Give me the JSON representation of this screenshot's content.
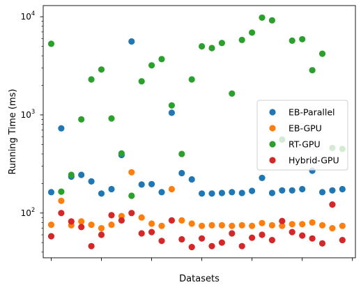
{
  "chart_data": {
    "type": "scatter",
    "xlabel": "Datasets",
    "ylabel": "Running Time (ms)",
    "yscale": "log",
    "ylim": [
      35,
      13000
    ],
    "xlim": [
      0.2,
      31.3
    ],
    "grid": false,
    "legend_position": "center-right",
    "x_ticks_labeled": false,
    "y_ticks": [
      {
        "value": 100,
        "base": "10",
        "exp": "2"
      },
      {
        "value": 1000,
        "base": "10",
        "exp": "3"
      },
      {
        "value": 10000,
        "base": "10",
        "exp": "4"
      }
    ],
    "x": [
      1,
      2,
      3,
      4,
      5,
      6,
      7,
      8,
      9,
      10,
      11,
      12,
      13,
      14,
      15,
      16,
      17,
      18,
      19,
      20,
      21,
      22,
      23,
      24,
      25,
      26,
      27,
      28,
      29,
      30,
      31
    ],
    "series": [
      {
        "name": "EB-Parallel",
        "color": "#1f77b4",
        "values": [
          163,
          730,
          235,
          245,
          210,
          158,
          175,
          390,
          5600,
          195,
          197,
          163,
          1050,
          255,
          220,
          158,
          158,
          160,
          163,
          160,
          168,
          228,
          160,
          170,
          170,
          175,
          270,
          163,
          170,
          175,
          null
        ]
      },
      {
        "name": "EB-GPU",
        "color": "#ff7f0e",
        "values": [
          76,
          133,
          75,
          82,
          76,
          70,
          76,
          93,
          260,
          90,
          78,
          74,
          175,
          84,
          78,
          74,
          75,
          75,
          74,
          75,
          74,
          79,
          75,
          74,
          77,
          77,
          80,
          75,
          70,
          74,
          null
        ]
      },
      {
        "name": "RT-GPU",
        "color": "#2ca02c",
        "values": [
          5300,
          165,
          245,
          900,
          2300,
          2900,
          920,
          405,
          150,
          2200,
          3200,
          3700,
          1250,
          400,
          2300,
          5000,
          4800,
          5400,
          1650,
          5800,
          6900,
          9800,
          9200,
          560,
          5700,
          5900,
          2850,
          4200,
          460,
          450,
          null
        ]
      },
      {
        "name": "Hybrid-GPU",
        "color": "#d62728",
        "values": [
          58,
          100,
          82,
          72,
          46,
          60,
          95,
          84,
          100,
          62,
          64,
          52,
          84,
          54,
          45,
          55,
          46,
          50,
          62,
          46,
          56,
          60,
          53,
          83,
          64,
          59,
          55,
          49,
          122,
          53,
          null
        ]
      }
    ]
  }
}
